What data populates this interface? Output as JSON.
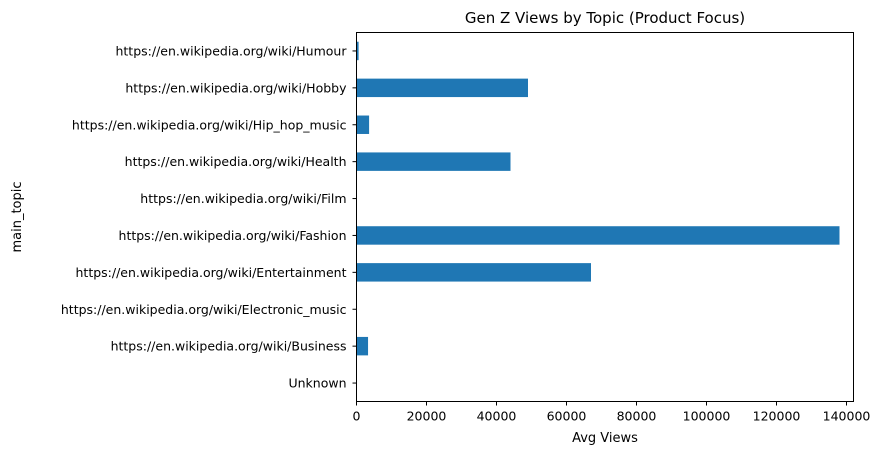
{
  "chart_data": {
    "type": "bar",
    "orientation": "horizontal",
    "title": "Gen Z Views by Topic (Product Focus)",
    "xlabel": "Avg Views",
    "ylabel": "main_topic",
    "xlim": [
      0,
      142000
    ],
    "xticks": [
      0,
      20000,
      40000,
      60000,
      80000,
      100000,
      120000,
      140000
    ],
    "grid": false,
    "bar_color": "#1f77b4",
    "categories": [
      "Unknown",
      "https://en.wikipedia.org/wiki/Business",
      "https://en.wikipedia.org/wiki/Electronic_music",
      "https://en.wikipedia.org/wiki/Entertainment",
      "https://en.wikipedia.org/wiki/Fashion",
      "https://en.wikipedia.org/wiki/Film",
      "https://en.wikipedia.org/wiki/Health",
      "https://en.wikipedia.org/wiki/Hip_hop_music",
      "https://en.wikipedia.org/wiki/Hobby",
      "https://en.wikipedia.org/wiki/Humour"
    ],
    "values": [
      0,
      3300,
      0,
      67000,
      138000,
      0,
      44000,
      3600,
      49000,
      600
    ]
  }
}
